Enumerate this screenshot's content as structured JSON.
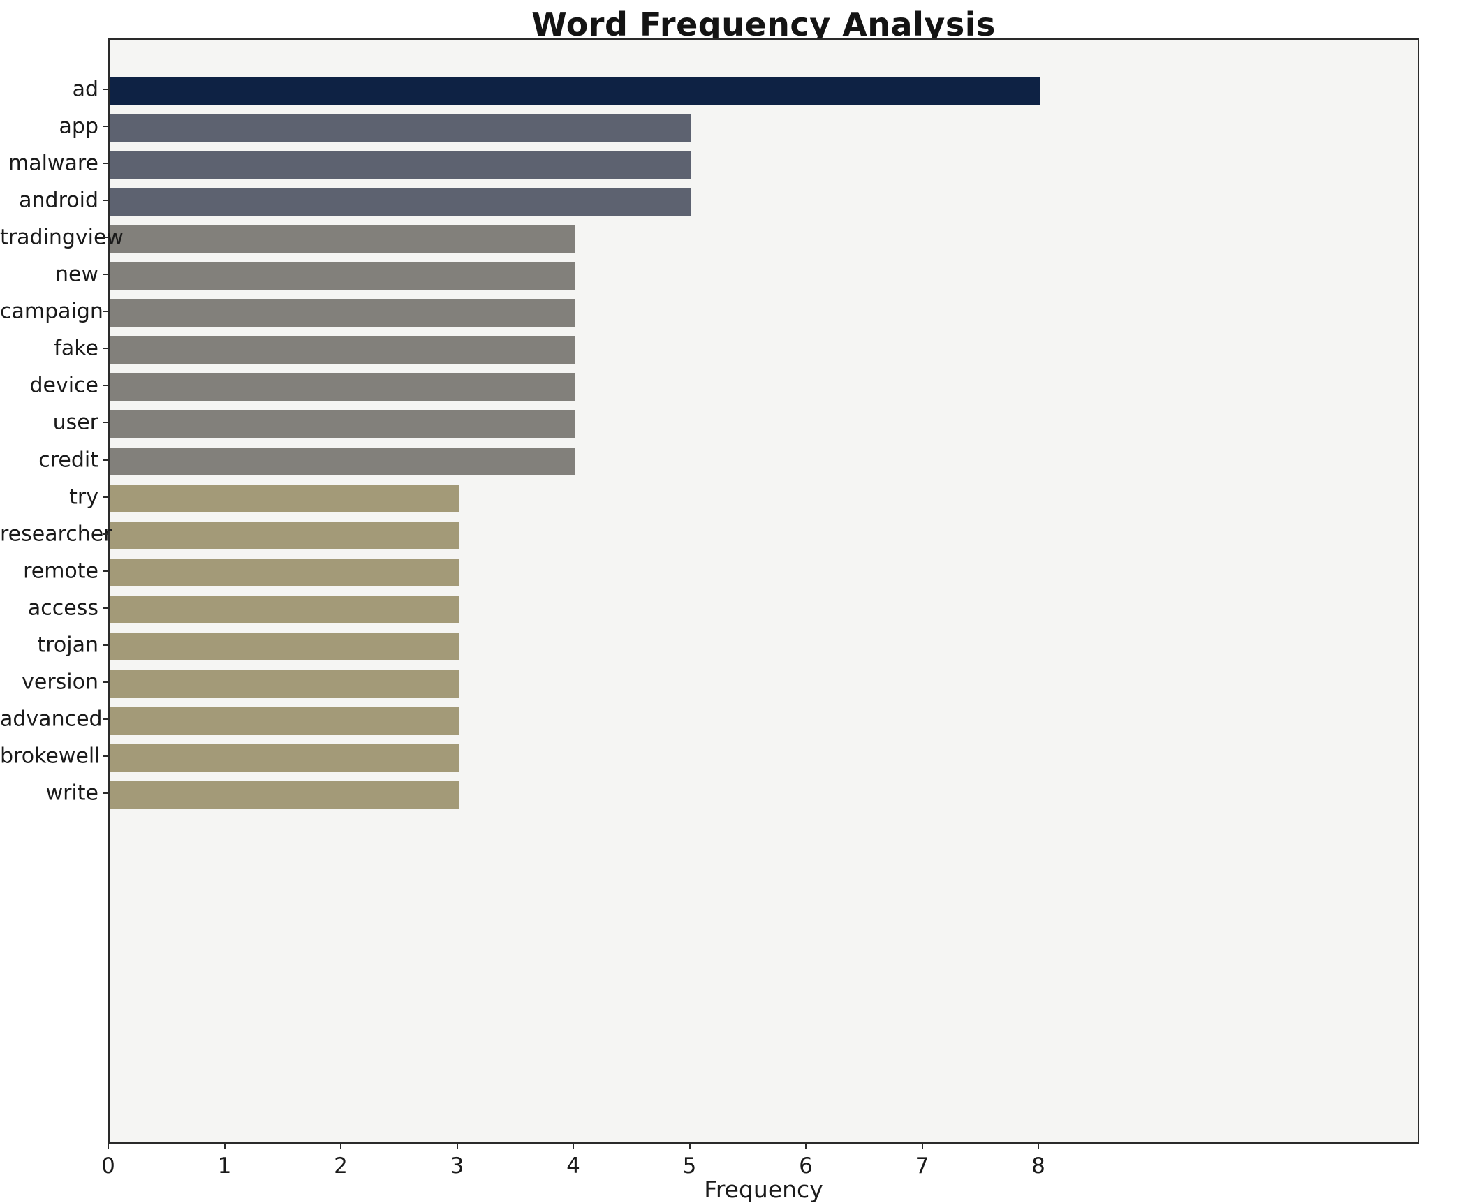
{
  "chart_data": {
    "type": "bar",
    "orientation": "horizontal",
    "title": "Word Frequency Analysis",
    "xlabel": "Frequency",
    "ylabel": "",
    "categories": [
      "ad",
      "app",
      "malware",
      "android",
      "tradingview",
      "new",
      "campaign",
      "fake",
      "device",
      "user",
      "credit",
      "try",
      "researcher",
      "remote",
      "access",
      "trojan",
      "version",
      "advanced",
      "brokewell",
      "write"
    ],
    "values": [
      8,
      5,
      5,
      5,
      4,
      4,
      4,
      4,
      4,
      4,
      4,
      3,
      3,
      3,
      3,
      3,
      3,
      3,
      3,
      3
    ],
    "bar_colors": [
      "#0e2244",
      "#5d6270",
      "#5d6270",
      "#5d6270",
      "#82807b",
      "#82807b",
      "#82807b",
      "#82807b",
      "#82807b",
      "#82807b",
      "#82807b",
      "#a39a78",
      "#a39a78",
      "#a39a78",
      "#a39a78",
      "#a39a78",
      "#a39a78",
      "#a39a78",
      "#a39a78",
      "#a39a78"
    ],
    "xticks": [
      0,
      1,
      2,
      3,
      4,
      5,
      6,
      7,
      8
    ],
    "xlim": [
      0,
      11.3
    ],
    "grid": false,
    "legend": null,
    "plot_background": "#f5f5f3",
    "accent_color": "#0e2244"
  }
}
